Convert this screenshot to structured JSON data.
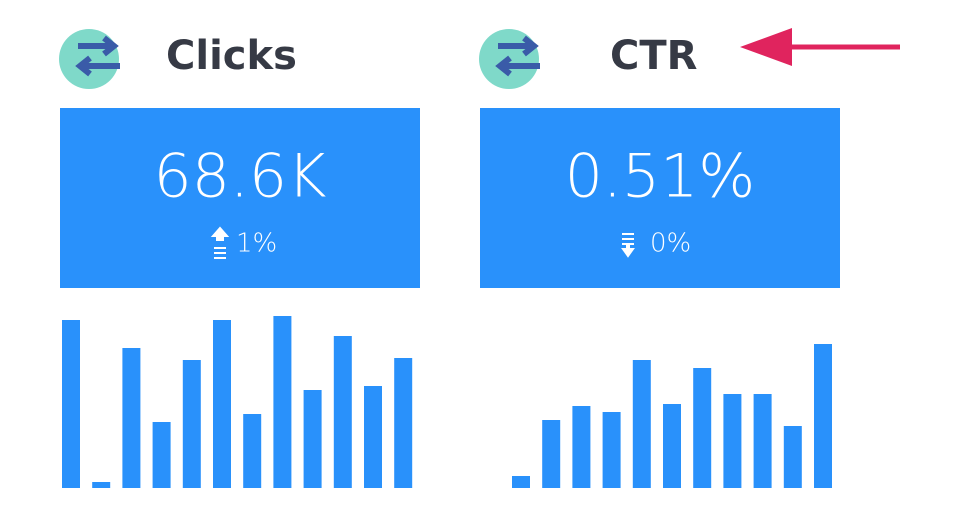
{
  "widgets": [
    {
      "title": "Clicks",
      "value": "68.6K",
      "change": "1%",
      "bars": [
        168,
        6,
        140,
        66,
        128,
        168,
        74,
        172,
        98,
        152,
        102,
        130
      ]
    },
    {
      "title": "CTR",
      "value": "0.51%",
      "change": "0%",
      "bars": [
        12,
        68,
        82,
        76,
        128,
        84,
        120,
        94,
        94,
        62,
        144
      ]
    }
  ]
}
